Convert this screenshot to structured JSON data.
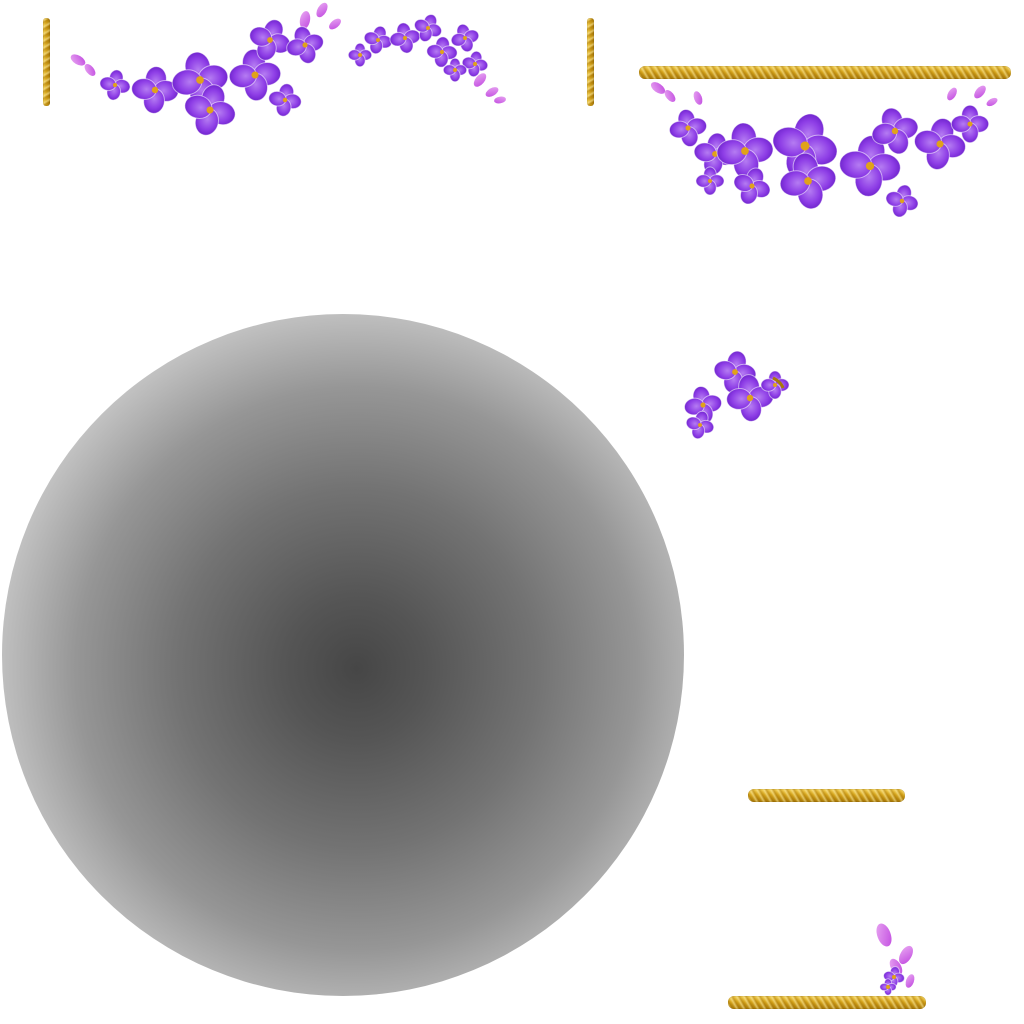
{
  "texture_atlas": {
    "background": "#ffffff",
    "palette": {
      "petal_light": "#b57cf2",
      "petal_mid": "#8e3ee6",
      "petal_dark": "#6a1fc9",
      "bud": "#c14ae0",
      "flower_center": "#e0a21a",
      "gold_light": "#f2cf55",
      "gold_dark": "#a97a08",
      "shadow_core": "#464646"
    },
    "sprites": [
      {
        "name": "gold-bar-vertical-left",
        "kind": "gold-bar"
      },
      {
        "name": "lilac-garland-top",
        "kind": "flower-garland"
      },
      {
        "name": "gold-bar-vertical-mid",
        "kind": "gold-bar"
      },
      {
        "name": "gold-bar-top-right",
        "kind": "gold-bar"
      },
      {
        "name": "lilac-swag-top-right",
        "kind": "flower-garland"
      },
      {
        "name": "lilac-cluster-small",
        "kind": "flower-cluster"
      },
      {
        "name": "radial-shadow",
        "kind": "shadow"
      },
      {
        "name": "gold-bar-bottom-short",
        "kind": "gold-bar"
      },
      {
        "name": "lilac-sprig-bottom",
        "kind": "flower-sprig"
      },
      {
        "name": "gold-bar-bottom",
        "kind": "gold-bar"
      }
    ]
  }
}
